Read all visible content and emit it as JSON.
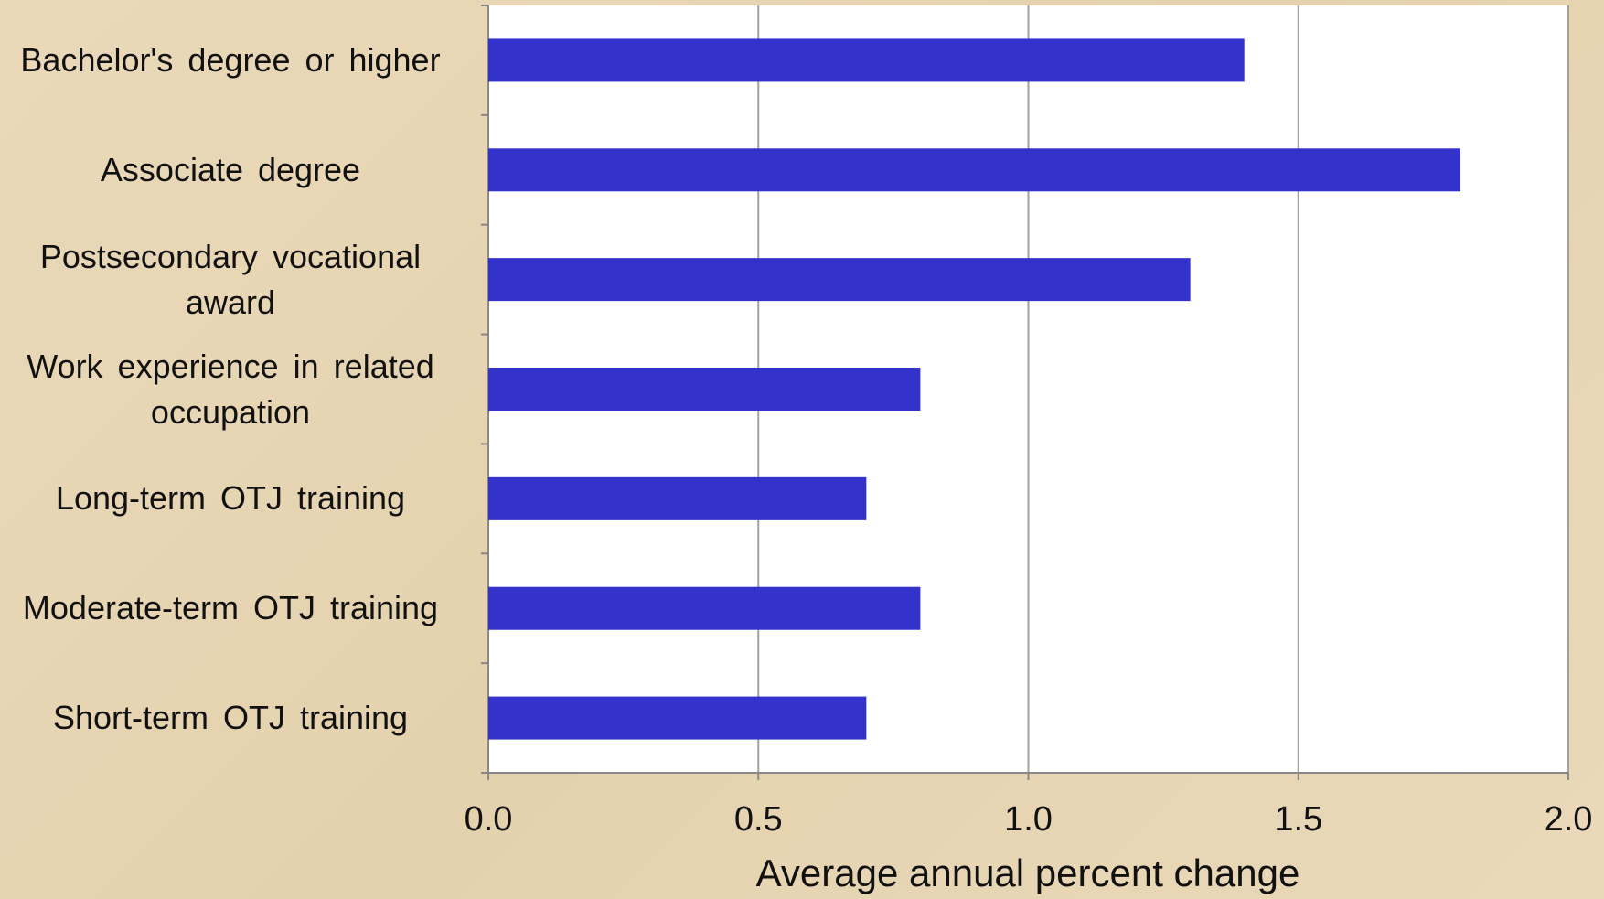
{
  "chart_data": {
    "type": "bar",
    "orientation": "horizontal",
    "categories": [
      "Bachelor's degree or higher",
      "Associate degree",
      "Postsecondary vocational award",
      "Work experience in related occupation",
      "Long-term OTJ training",
      "Moderate-term OTJ training",
      "Short-term OTJ training"
    ],
    "values": [
      1.4,
      1.8,
      1.3,
      0.8,
      0.7,
      0.8,
      0.7
    ],
    "color": "#3333cc",
    "x_label": "Average annual percent change",
    "xlim": [
      0,
      2
    ],
    "xticks": [
      {
        "value": 0,
        "label": "0.0"
      },
      {
        "value": 0.5,
        "label": "0.5"
      },
      {
        "value": 1,
        "label": "1.0"
      },
      {
        "value": 1.5,
        "label": "1.5"
      },
      {
        "value": 2,
        "label": "2.0"
      }
    ],
    "grid": true
  }
}
